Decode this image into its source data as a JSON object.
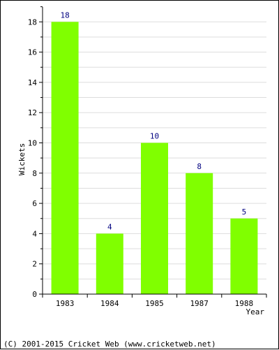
{
  "chart_data": {
    "type": "bar",
    "categories": [
      "1983",
      "1984",
      "1985",
      "1987",
      "1988"
    ],
    "values": [
      18,
      4,
      10,
      8,
      5
    ],
    "ylabel": "Wickets",
    "xlabel": "Year",
    "ylim": [
      0,
      19
    ],
    "yticks": [
      0,
      2,
      4,
      6,
      8,
      10,
      12,
      14,
      16,
      18
    ],
    "grid": true,
    "bar_color": "#80ff00",
    "data_label_color": "#000080"
  },
  "footer": {
    "copyright": "(C) 2001-2015 Cricket Web (www.cricketweb.net)"
  }
}
